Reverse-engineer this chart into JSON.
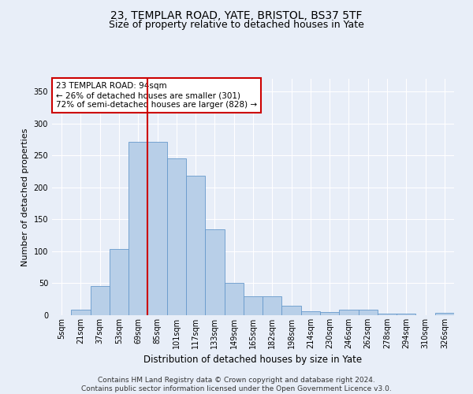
{
  "title1": "23, TEMPLAR ROAD, YATE, BRISTOL, BS37 5TF",
  "title2": "Size of property relative to detached houses in Yate",
  "xlabel": "Distribution of detached houses by size in Yate",
  "ylabel": "Number of detached properties",
  "bin_labels": [
    "5sqm",
    "21sqm",
    "37sqm",
    "53sqm",
    "69sqm",
    "85sqm",
    "101sqm",
    "117sqm",
    "133sqm",
    "149sqm",
    "165sqm",
    "182sqm",
    "198sqm",
    "214sqm",
    "230sqm",
    "246sqm",
    "262sqm",
    "278sqm",
    "294sqm",
    "310sqm",
    "326sqm"
  ],
  "bar_values": [
    0,
    9,
    46,
    104,
    271,
    271,
    245,
    218,
    134,
    50,
    29,
    29,
    15,
    6,
    5,
    9,
    9,
    2,
    3,
    0,
    4
  ],
  "bar_color": "#b8cfe8",
  "bar_edge_color": "#6699cc",
  "vline_color": "#cc0000",
  "vline_x_index": 5,
  "annotation_text": "23 TEMPLAR ROAD: 94sqm\n← 26% of detached houses are smaller (301)\n72% of semi-detached houses are larger (828) →",
  "annotation_box_color": "#ffffff",
  "annotation_box_edge": "#cc0000",
  "ylim": [
    0,
    370
  ],
  "yticks": [
    0,
    50,
    100,
    150,
    200,
    250,
    300,
    350
  ],
  "footer": "Contains HM Land Registry data © Crown copyright and database right 2024.\nContains public sector information licensed under the Open Government Licence v3.0.",
  "bg_color": "#e8eef8",
  "plot_bg_color": "#e8eef8",
  "grid_color": "#ffffff",
  "title1_fontsize": 10,
  "title2_fontsize": 9,
  "xlabel_fontsize": 8.5,
  "ylabel_fontsize": 8,
  "tick_fontsize": 7,
  "annotation_fontsize": 7.5,
  "footer_fontsize": 6.5
}
